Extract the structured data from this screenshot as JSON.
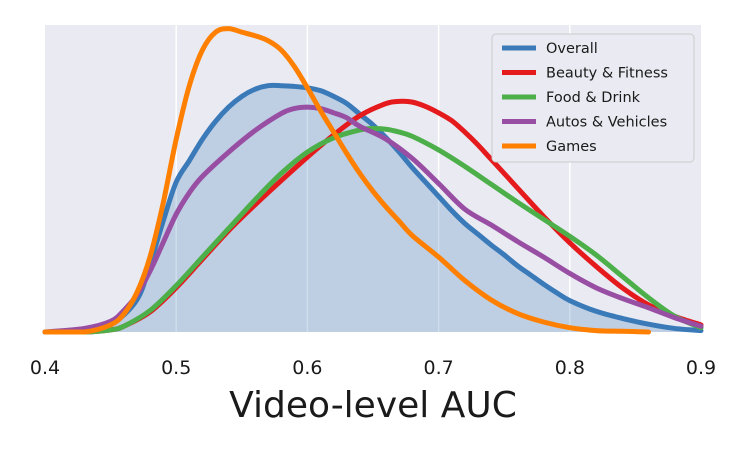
{
  "chart_data": {
    "type": "line",
    "title": "",
    "xlabel": "Video-level AUC",
    "ylabel": "",
    "xlim": [
      0.4,
      0.9
    ],
    "ylim": [
      0,
      4.3
    ],
    "x_ticks": [
      "0.4",
      "0.5",
      "0.6",
      "0.7",
      "0.8",
      "0.9"
    ],
    "grid": true,
    "legend_position": "top-right",
    "filled_series": "Overall",
    "series": [
      {
        "name": "Overall",
        "color": "#3a7ab8",
        "x": [
          0.4,
          0.43,
          0.45,
          0.47,
          0.48,
          0.49,
          0.5,
          0.51,
          0.52,
          0.53,
          0.54,
          0.55,
          0.56,
          0.57,
          0.58,
          0.59,
          0.6,
          0.61,
          0.62,
          0.63,
          0.64,
          0.65,
          0.66,
          0.67,
          0.68,
          0.69,
          0.7,
          0.71,
          0.72,
          0.73,
          0.74,
          0.75,
          0.76,
          0.77,
          0.78,
          0.79,
          0.8,
          0.82,
          0.84,
          0.86,
          0.88,
          0.9
        ],
        "y": [
          0.0,
          0.02,
          0.1,
          0.45,
          0.95,
          1.55,
          2.1,
          2.4,
          2.7,
          2.95,
          3.15,
          3.3,
          3.4,
          3.45,
          3.45,
          3.44,
          3.42,
          3.38,
          3.3,
          3.2,
          3.05,
          2.9,
          2.72,
          2.52,
          2.3,
          2.1,
          1.9,
          1.7,
          1.52,
          1.37,
          1.22,
          1.08,
          0.93,
          0.8,
          0.67,
          0.55,
          0.44,
          0.29,
          0.19,
          0.11,
          0.05,
          0.02
        ]
      },
      {
        "name": "Beauty & Fitness",
        "color": "#e41a1c",
        "x": [
          0.4,
          0.43,
          0.45,
          0.46,
          0.48,
          0.5,
          0.52,
          0.54,
          0.56,
          0.58,
          0.6,
          0.62,
          0.64,
          0.66,
          0.67,
          0.68,
          0.69,
          0.7,
          0.71,
          0.72,
          0.73,
          0.74,
          0.76,
          0.78,
          0.8,
          0.82,
          0.84,
          0.86,
          0.88,
          0.9
        ],
        "y": [
          0.0,
          0.0,
          0.03,
          0.08,
          0.28,
          0.62,
          1.02,
          1.42,
          1.78,
          2.12,
          2.45,
          2.76,
          3.03,
          3.2,
          3.23,
          3.22,
          3.16,
          3.07,
          2.96,
          2.8,
          2.62,
          2.42,
          2.02,
          1.62,
          1.25,
          0.92,
          0.62,
          0.38,
          0.22,
          0.1
        ]
      },
      {
        "name": "Food & Drink",
        "color": "#4daf4a",
        "x": [
          0.4,
          0.43,
          0.45,
          0.46,
          0.48,
          0.5,
          0.52,
          0.54,
          0.56,
          0.58,
          0.6,
          0.62,
          0.64,
          0.65,
          0.66,
          0.67,
          0.68,
          0.7,
          0.72,
          0.74,
          0.76,
          0.78,
          0.8,
          0.82,
          0.84,
          0.86,
          0.88,
          0.9
        ],
        "y": [
          0.0,
          0.0,
          0.03,
          0.08,
          0.3,
          0.65,
          1.05,
          1.45,
          1.85,
          2.22,
          2.52,
          2.72,
          2.83,
          2.85,
          2.84,
          2.8,
          2.74,
          2.55,
          2.32,
          2.07,
          1.82,
          1.58,
          1.34,
          1.08,
          0.78,
          0.48,
          0.22,
          0.06
        ]
      },
      {
        "name": "Autos & Vehicles",
        "color": "#984ea3",
        "x": [
          0.4,
          0.43,
          0.45,
          0.46,
          0.47,
          0.48,
          0.49,
          0.5,
          0.51,
          0.52,
          0.54,
          0.56,
          0.58,
          0.59,
          0.6,
          0.61,
          0.62,
          0.63,
          0.64,
          0.66,
          0.68,
          0.7,
          0.72,
          0.74,
          0.76,
          0.78,
          0.8,
          0.82,
          0.84,
          0.86,
          0.88,
          0.9
        ],
        "y": [
          0.0,
          0.05,
          0.15,
          0.3,
          0.52,
          0.85,
          1.25,
          1.65,
          1.95,
          2.18,
          2.52,
          2.82,
          3.06,
          3.13,
          3.15,
          3.13,
          3.07,
          3.0,
          2.88,
          2.7,
          2.43,
          2.08,
          1.72,
          1.5,
          1.27,
          1.05,
          0.82,
          0.62,
          0.47,
          0.34,
          0.2,
          0.08
        ]
      },
      {
        "name": "Games",
        "color": "#ff7f00",
        "x": [
          0.4,
          0.43,
          0.45,
          0.46,
          0.47,
          0.48,
          0.49,
          0.5,
          0.51,
          0.52,
          0.53,
          0.54,
          0.55,
          0.56,
          0.57,
          0.58,
          0.59,
          0.6,
          0.61,
          0.62,
          0.63,
          0.64,
          0.65,
          0.66,
          0.67,
          0.68,
          0.7,
          0.72,
          0.74,
          0.76,
          0.78,
          0.8,
          0.82,
          0.84,
          0.86
        ],
        "y": [
          0.0,
          0.0,
          0.1,
          0.25,
          0.55,
          1.05,
          1.8,
          2.7,
          3.45,
          3.95,
          4.2,
          4.25,
          4.2,
          4.15,
          4.08,
          3.95,
          3.72,
          3.42,
          3.1,
          2.8,
          2.5,
          2.22,
          1.97,
          1.75,
          1.55,
          1.35,
          1.05,
          0.72,
          0.45,
          0.26,
          0.14,
          0.06,
          0.02,
          0.01,
          0.0
        ]
      }
    ]
  }
}
